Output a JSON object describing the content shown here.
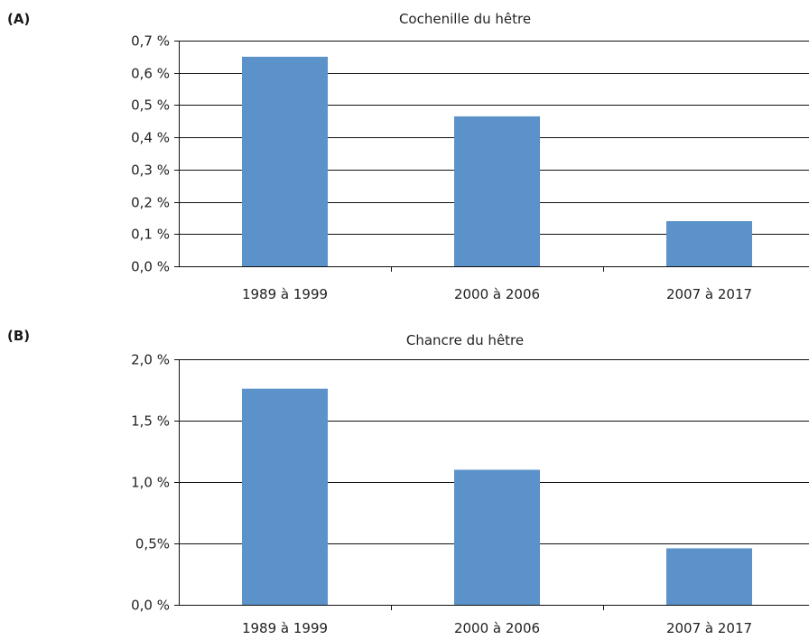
{
  "chart_data": [
    {
      "type": "bar",
      "panel": "(A)",
      "title": "Cochenille du hêtre",
      "categories": [
        "1989 à 1999",
        "2000 à 2006",
        "2007 à 2017"
      ],
      "values": [
        0.65,
        0.465,
        0.14
      ],
      "unit": "%",
      "yticks": [
        0.0,
        0.1,
        0.2,
        0.3,
        0.4,
        0.5,
        0.6,
        0.7
      ],
      "ytick_labels": [
        "0,0 %",
        "0,1 %",
        "0,2 %",
        "0,3 %",
        "0,4 %",
        "0,5 %",
        "0,6 %",
        "0,7 %"
      ],
      "ylim": [
        0,
        0.7
      ],
      "xlabel": "",
      "ylabel": "",
      "grid": true,
      "color": "#5b92c9"
    },
    {
      "type": "bar",
      "panel": "(B)",
      "title": "Chancre du hêtre",
      "categories": [
        "1989 à 1999",
        "2000 à 2006",
        "2007 à 2017"
      ],
      "values": [
        1.76,
        1.1,
        0.46
      ],
      "unit": "%",
      "yticks": [
        0.0,
        0.5,
        1.0,
        1.5,
        2.0
      ],
      "ytick_labels": [
        "0,0 %",
        "0,5%",
        "1,0 %",
        "1,5 %",
        "2,0 %"
      ],
      "ylim": [
        0,
        2.0
      ],
      "xlabel": "",
      "ylabel": "",
      "grid": true,
      "color": "#5b92c9"
    }
  ]
}
